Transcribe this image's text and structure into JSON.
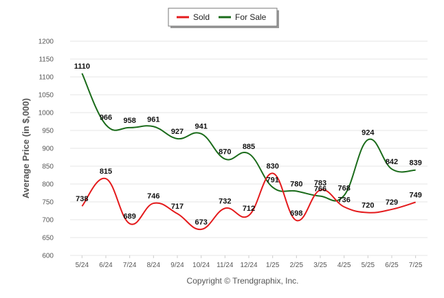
{
  "chart_data": {
    "type": "line",
    "categories": [
      "5/24",
      "6/24",
      "7/24",
      "8/24",
      "9/24",
      "10/24",
      "11/24",
      "12/24",
      "1/25",
      "2/25",
      "3/25",
      "4/25",
      "5/25",
      "6/25",
      "7/25"
    ],
    "series": [
      {
        "name": "Sold",
        "color": "#e41a1c",
        "values": [
          738,
          815,
          689,
          746,
          717,
          673,
          732,
          712,
          830,
          698,
          783,
          736,
          720,
          729,
          749
        ]
      },
      {
        "name": "For Sale",
        "color": "#1a6b1a",
        "values": [
          1110,
          966,
          958,
          961,
          927,
          941,
          870,
          885,
          791,
          780,
          766,
          768,
          924,
          842,
          839
        ]
      }
    ],
    "title": "",
    "xlabel": "",
    "ylabel": "Average Price (in $,000)",
    "ylim": [
      600,
      1200
    ],
    "yticks": [
      600,
      650,
      700,
      750,
      800,
      850,
      900,
      950,
      1000,
      1050,
      1100,
      1150,
      1200
    ],
    "grid": true,
    "legend_position": "top-center"
  },
  "footer": "Copyright © Trendgraphix, Inc."
}
